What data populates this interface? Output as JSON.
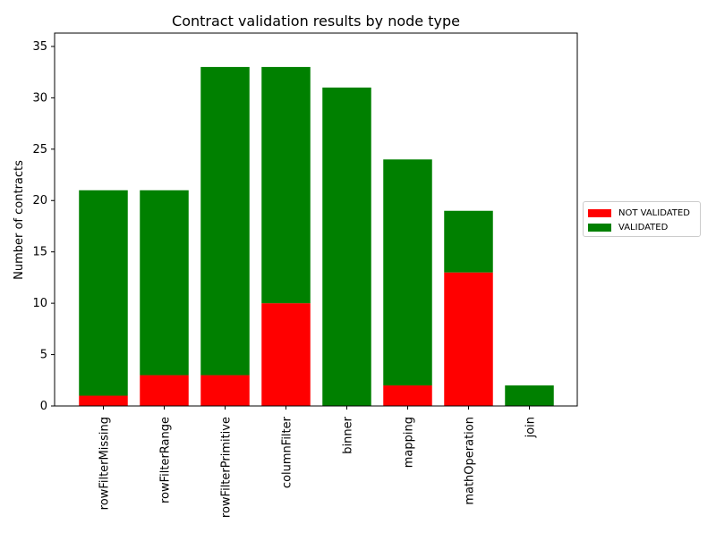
{
  "chart_data": {
    "type": "bar",
    "stacked": true,
    "title": "Contract validation results by node type",
    "xlabel": "",
    "ylabel": "Number of contracts",
    "ylim": [
      0,
      36.3
    ],
    "yticks": [
      0,
      5,
      10,
      15,
      20,
      25,
      30,
      35
    ],
    "categories": [
      "rowFilterMissing",
      "rowFilterRange",
      "rowFilterPrimitive",
      "columnFilter",
      "binner",
      "mapping",
      "mathOperation",
      "join"
    ],
    "series": [
      {
        "name": "NOT VALIDATED",
        "color": "#ff0000",
        "values": [
          1,
          3,
          3,
          10,
          0,
          2,
          13,
          0
        ]
      },
      {
        "name": "VALIDATED",
        "color": "#008000",
        "values": [
          20,
          18,
          30,
          23,
          31,
          22,
          6,
          2
        ]
      }
    ],
    "legend": {
      "placement": "right",
      "entries": [
        "NOT VALIDATED",
        "VALIDATED"
      ]
    },
    "grid": false
  }
}
